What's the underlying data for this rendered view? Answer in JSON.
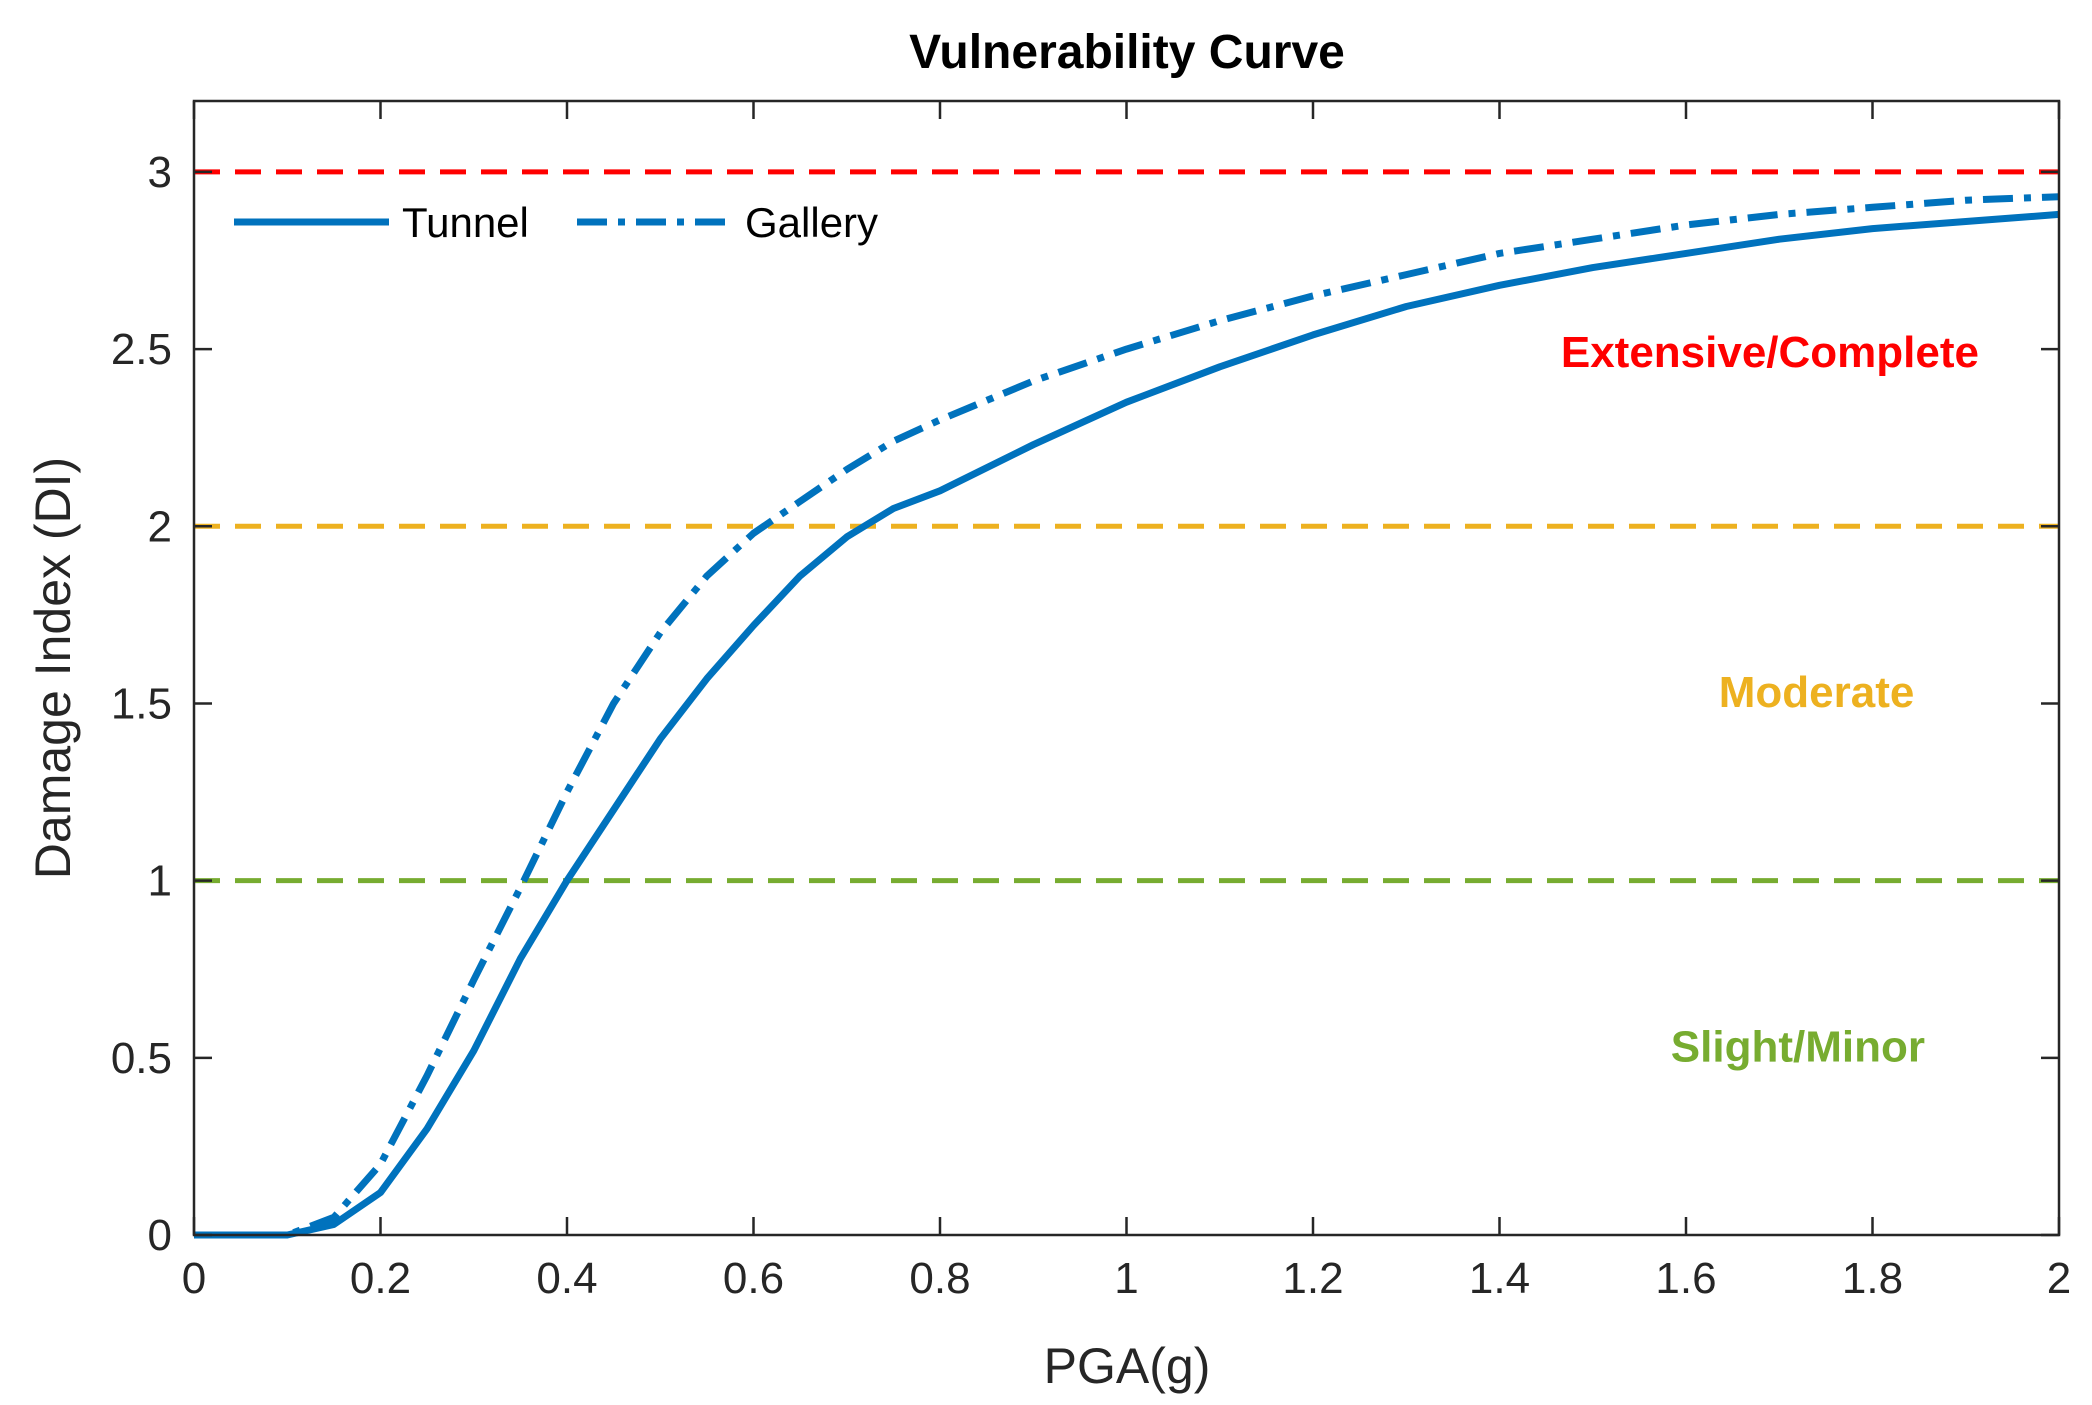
{
  "chart_data": {
    "type": "line",
    "title": "Vulnerability Curve",
    "xlabel": "PGA(g)",
    "ylabel": "Damage Index (DI)",
    "xlim": [
      0,
      2
    ],
    "ylim": [
      0,
      3.2
    ],
    "xticks": [
      0,
      0.2,
      0.4,
      0.6,
      0.8,
      1,
      1.2,
      1.4,
      1.6,
      1.8,
      2
    ],
    "xtick_labels": [
      "0",
      "0.2",
      "0.4",
      "0.6",
      "0.8",
      "1",
      "1.2",
      "1.4",
      "1.6",
      "1.8",
      "2"
    ],
    "yticks": [
      0,
      0.5,
      1,
      1.5,
      2,
      2.5,
      3
    ],
    "ytick_labels": [
      "0",
      "0.5",
      "1",
      "1.5",
      "2",
      "2.5",
      "3"
    ],
    "grid": false,
    "legend_position": "top-left",
    "series": [
      {
        "name": "Tunnel",
        "style": "solid",
        "color": "#0072BD",
        "x": [
          0,
          0.05,
          0.1,
          0.15,
          0.2,
          0.25,
          0.3,
          0.35,
          0.4,
          0.45,
          0.5,
          0.55,
          0.6,
          0.65,
          0.7,
          0.75,
          0.8,
          0.9,
          1.0,
          1.1,
          1.2,
          1.3,
          1.4,
          1.5,
          1.6,
          1.7,
          1.8,
          1.9,
          2.0
        ],
        "y": [
          0,
          0,
          0,
          0.03,
          0.12,
          0.3,
          0.52,
          0.78,
          1.0,
          1.2,
          1.4,
          1.57,
          1.72,
          1.86,
          1.97,
          2.05,
          2.1,
          2.23,
          2.35,
          2.45,
          2.54,
          2.62,
          2.68,
          2.73,
          2.77,
          2.81,
          2.84,
          2.86,
          2.88
        ]
      },
      {
        "name": "Gallery",
        "style": "dashdot",
        "color": "#0072BD",
        "x": [
          0,
          0.05,
          0.1,
          0.15,
          0.2,
          0.25,
          0.3,
          0.35,
          0.4,
          0.45,
          0.5,
          0.55,
          0.6,
          0.65,
          0.7,
          0.75,
          0.8,
          0.9,
          1.0,
          1.1,
          1.2,
          1.3,
          1.4,
          1.5,
          1.6,
          1.7,
          1.8,
          1.9,
          2.0
        ],
        "y": [
          0,
          0,
          0,
          0.05,
          0.2,
          0.45,
          0.72,
          0.98,
          1.25,
          1.5,
          1.7,
          1.86,
          1.98,
          2.07,
          2.16,
          2.24,
          2.3,
          2.41,
          2.5,
          2.58,
          2.65,
          2.71,
          2.77,
          2.81,
          2.85,
          2.88,
          2.9,
          2.92,
          2.93
        ]
      }
    ],
    "thresholds": [
      {
        "y": 3,
        "color": "#FF0000"
      },
      {
        "y": 2,
        "color": "#EDB120"
      },
      {
        "y": 1,
        "color": "#77AC30"
      }
    ],
    "region_labels": [
      {
        "text": "Extensive/Complete",
        "x": 1.69,
        "y": 2.45,
        "color": "#FF0000"
      },
      {
        "text": "Moderate",
        "x": 1.74,
        "y": 1.49,
        "color": "#EDB120"
      },
      {
        "text": "Slight/Minor",
        "x": 1.72,
        "y": 0.49,
        "color": "#77AC30"
      }
    ]
  }
}
